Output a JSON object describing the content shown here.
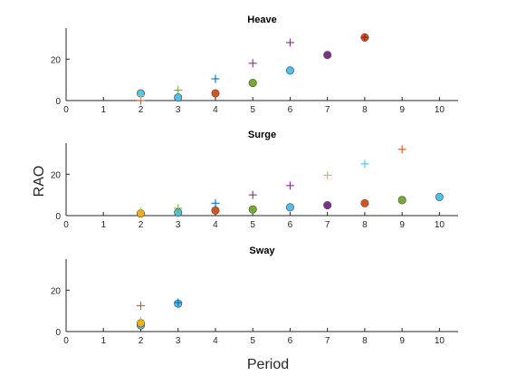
{
  "figure": {
    "xlabel": "Period",
    "ylabel": "RAO"
  },
  "chart_data": [
    {
      "type": "scatter",
      "title": "Heave",
      "xlim": [
        0,
        10.5
      ],
      "ylim": [
        0,
        35
      ],
      "xticks": [
        0,
        1,
        2,
        3,
        4,
        5,
        6,
        7,
        8,
        9,
        10
      ],
      "yticks": [
        0,
        20
      ],
      "grid": false,
      "series": [
        {
          "marker": "plus",
          "color": "#D95319",
          "points": [
            [
              2,
              0
            ]
          ]
        },
        {
          "marker": "plus",
          "color": "#EDB120",
          "points": [
            [
              2,
              2.5
            ]
          ]
        },
        {
          "marker": "plus",
          "color": "#77AC30",
          "points": [
            [
              3,
              5
            ]
          ]
        },
        {
          "marker": "plus",
          "color": "#0072BD",
          "points": [
            [
              4,
              10.5
            ]
          ]
        },
        {
          "marker": "plus",
          "color": "#7E2F8E",
          "points": [
            [
              5,
              18
            ],
            [
              6,
              28
            ]
          ]
        },
        {
          "marker": "plus",
          "color": "#A2142F",
          "points": [
            [
              8,
              30.5
            ]
          ]
        },
        {
          "marker": "circle",
          "color": "#4DBEEE",
          "points": [
            [
              2,
              3.5
            ],
            [
              3,
              1.5
            ],
            [
              6,
              14.5
            ]
          ]
        },
        {
          "marker": "circle",
          "color": "#D95319",
          "points": [
            [
              4,
              3.5
            ],
            [
              8,
              30.5
            ]
          ]
        },
        {
          "marker": "circle",
          "color": "#77AC30",
          "points": [
            [
              5,
              8.5
            ]
          ]
        },
        {
          "marker": "circle",
          "color": "#7E2F8E",
          "points": [
            [
              7,
              22
            ]
          ]
        }
      ]
    },
    {
      "type": "scatter",
      "title": "Surge",
      "xlim": [
        0,
        10.5
      ],
      "ylim": [
        0,
        35
      ],
      "xticks": [
        0,
        1,
        2,
        3,
        4,
        5,
        6,
        7,
        8,
        9,
        10
      ],
      "yticks": [
        0,
        20
      ],
      "grid": false,
      "series": [
        {
          "marker": "plus",
          "color": "#EDB120",
          "points": [
            [
              2,
              2
            ],
            [
              7,
              19.5
            ]
          ]
        },
        {
          "marker": "plus",
          "color": "#77AC30",
          "points": [
            [
              3,
              3.5
            ]
          ]
        },
        {
          "marker": "plus",
          "color": "#0072BD",
          "points": [
            [
              4,
              6
            ]
          ]
        },
        {
          "marker": "plus",
          "color": "#7E2F8E",
          "points": [
            [
              5,
              10
            ],
            [
              6,
              14.5
            ]
          ]
        },
        {
          "marker": "plus",
          "color": "#4DBEEE",
          "points": [
            [
              8,
              25
            ]
          ]
        },
        {
          "marker": "plus",
          "color": "#D95319",
          "points": [
            [
              9,
              32
            ]
          ]
        },
        {
          "marker": "circle",
          "color": "#EDB120",
          "points": [
            [
              2,
              1
            ]
          ]
        },
        {
          "marker": "circle",
          "color": "#4DBEEE",
          "points": [
            [
              3,
              1.5
            ],
            [
              6,
              4
            ],
            [
              10,
              9
            ]
          ]
        },
        {
          "marker": "circle",
          "color": "#D95319",
          "points": [
            [
              4,
              2.5
            ],
            [
              8,
              6
            ]
          ]
        },
        {
          "marker": "circle",
          "color": "#77AC30",
          "points": [
            [
              5,
              3
            ],
            [
              9,
              7.5
            ]
          ]
        },
        {
          "marker": "circle",
          "color": "#7E2F8E",
          "points": [
            [
              7,
              5
            ]
          ]
        }
      ]
    },
    {
      "type": "scatter",
      "title": "Sway",
      "xlim": [
        0,
        10.5
      ],
      "ylim": [
        0,
        35
      ],
      "xticks": [
        0,
        1,
        2,
        3,
        4,
        5,
        6,
        7,
        8,
        9,
        10
      ],
      "yticks": [
        0,
        20
      ],
      "grid": false,
      "series": [
        {
          "marker": "plus",
          "color": "#D95319",
          "points": [
            [
              2,
              12.5
            ]
          ]
        },
        {
          "marker": "plus",
          "color": "#EDB120",
          "points": [
            [
              2,
              5
            ]
          ]
        },
        {
          "marker": "plus",
          "color": "#0072BD",
          "points": [
            [
              3,
              14
            ]
          ]
        },
        {
          "marker": "circle",
          "color": "#4DBEEE",
          "points": [
            [
              2,
              3
            ],
            [
              3,
              13.5
            ]
          ]
        },
        {
          "marker": "circle",
          "color": "#EDB120",
          "points": [
            [
              2,
              4
            ]
          ]
        }
      ]
    }
  ]
}
